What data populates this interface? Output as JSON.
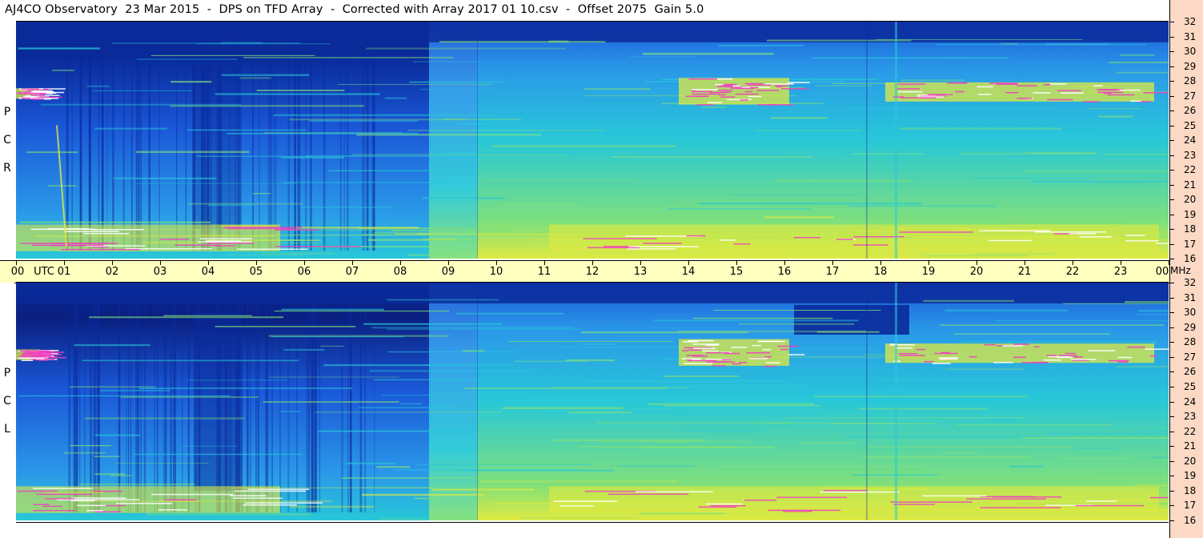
{
  "title": "AJ4CO Observatory  23 Mar 2015  -  DPS on TFD Array  -  Corrected with Array 2017 01 10.csv  -  Offset 2075  Gain 5.0",
  "panels": [
    {
      "name": "top",
      "pol_letters": [
        "P",
        "C",
        "R"
      ]
    },
    {
      "name": "bottom",
      "pol_letters": [
        "P",
        "C",
        "L"
      ]
    }
  ],
  "freq_unit": "MHz",
  "utc_label": "UTC",
  "time_labels": [
    "00",
    "01",
    "02",
    "03",
    "04",
    "05",
    "06",
    "07",
    "08",
    "09",
    "10",
    "11",
    "12",
    "13",
    "14",
    "15",
    "16",
    "17",
    "18",
    "19",
    "20",
    "21",
    "22",
    "23",
    "00"
  ],
  "freq_labels": [
    "32",
    "31",
    "30",
    "29",
    "28",
    "27",
    "26",
    "25",
    "24",
    "23",
    "22",
    "21",
    "20",
    "19",
    "18",
    "17",
    "16"
  ],
  "colors": {
    "deep": "#0a2a9a",
    "blue": "#1a58d8",
    "mid": "#2a98e8",
    "cyan": "#28c8d8",
    "green": "#80e07a",
    "yellow": "#e0ea40",
    "magenta": "#f040c0",
    "timebar_bg": "#ffffc0",
    "right_bg": "#fbd9c4"
  },
  "chart_data": {
    "type": "heatmap",
    "x_unit": "UTC hour",
    "y_unit": "MHz",
    "xlim": [
      0,
      24
    ],
    "ylim": [
      16,
      32
    ],
    "panels": [
      "RCP",
      "LCP"
    ]
  }
}
